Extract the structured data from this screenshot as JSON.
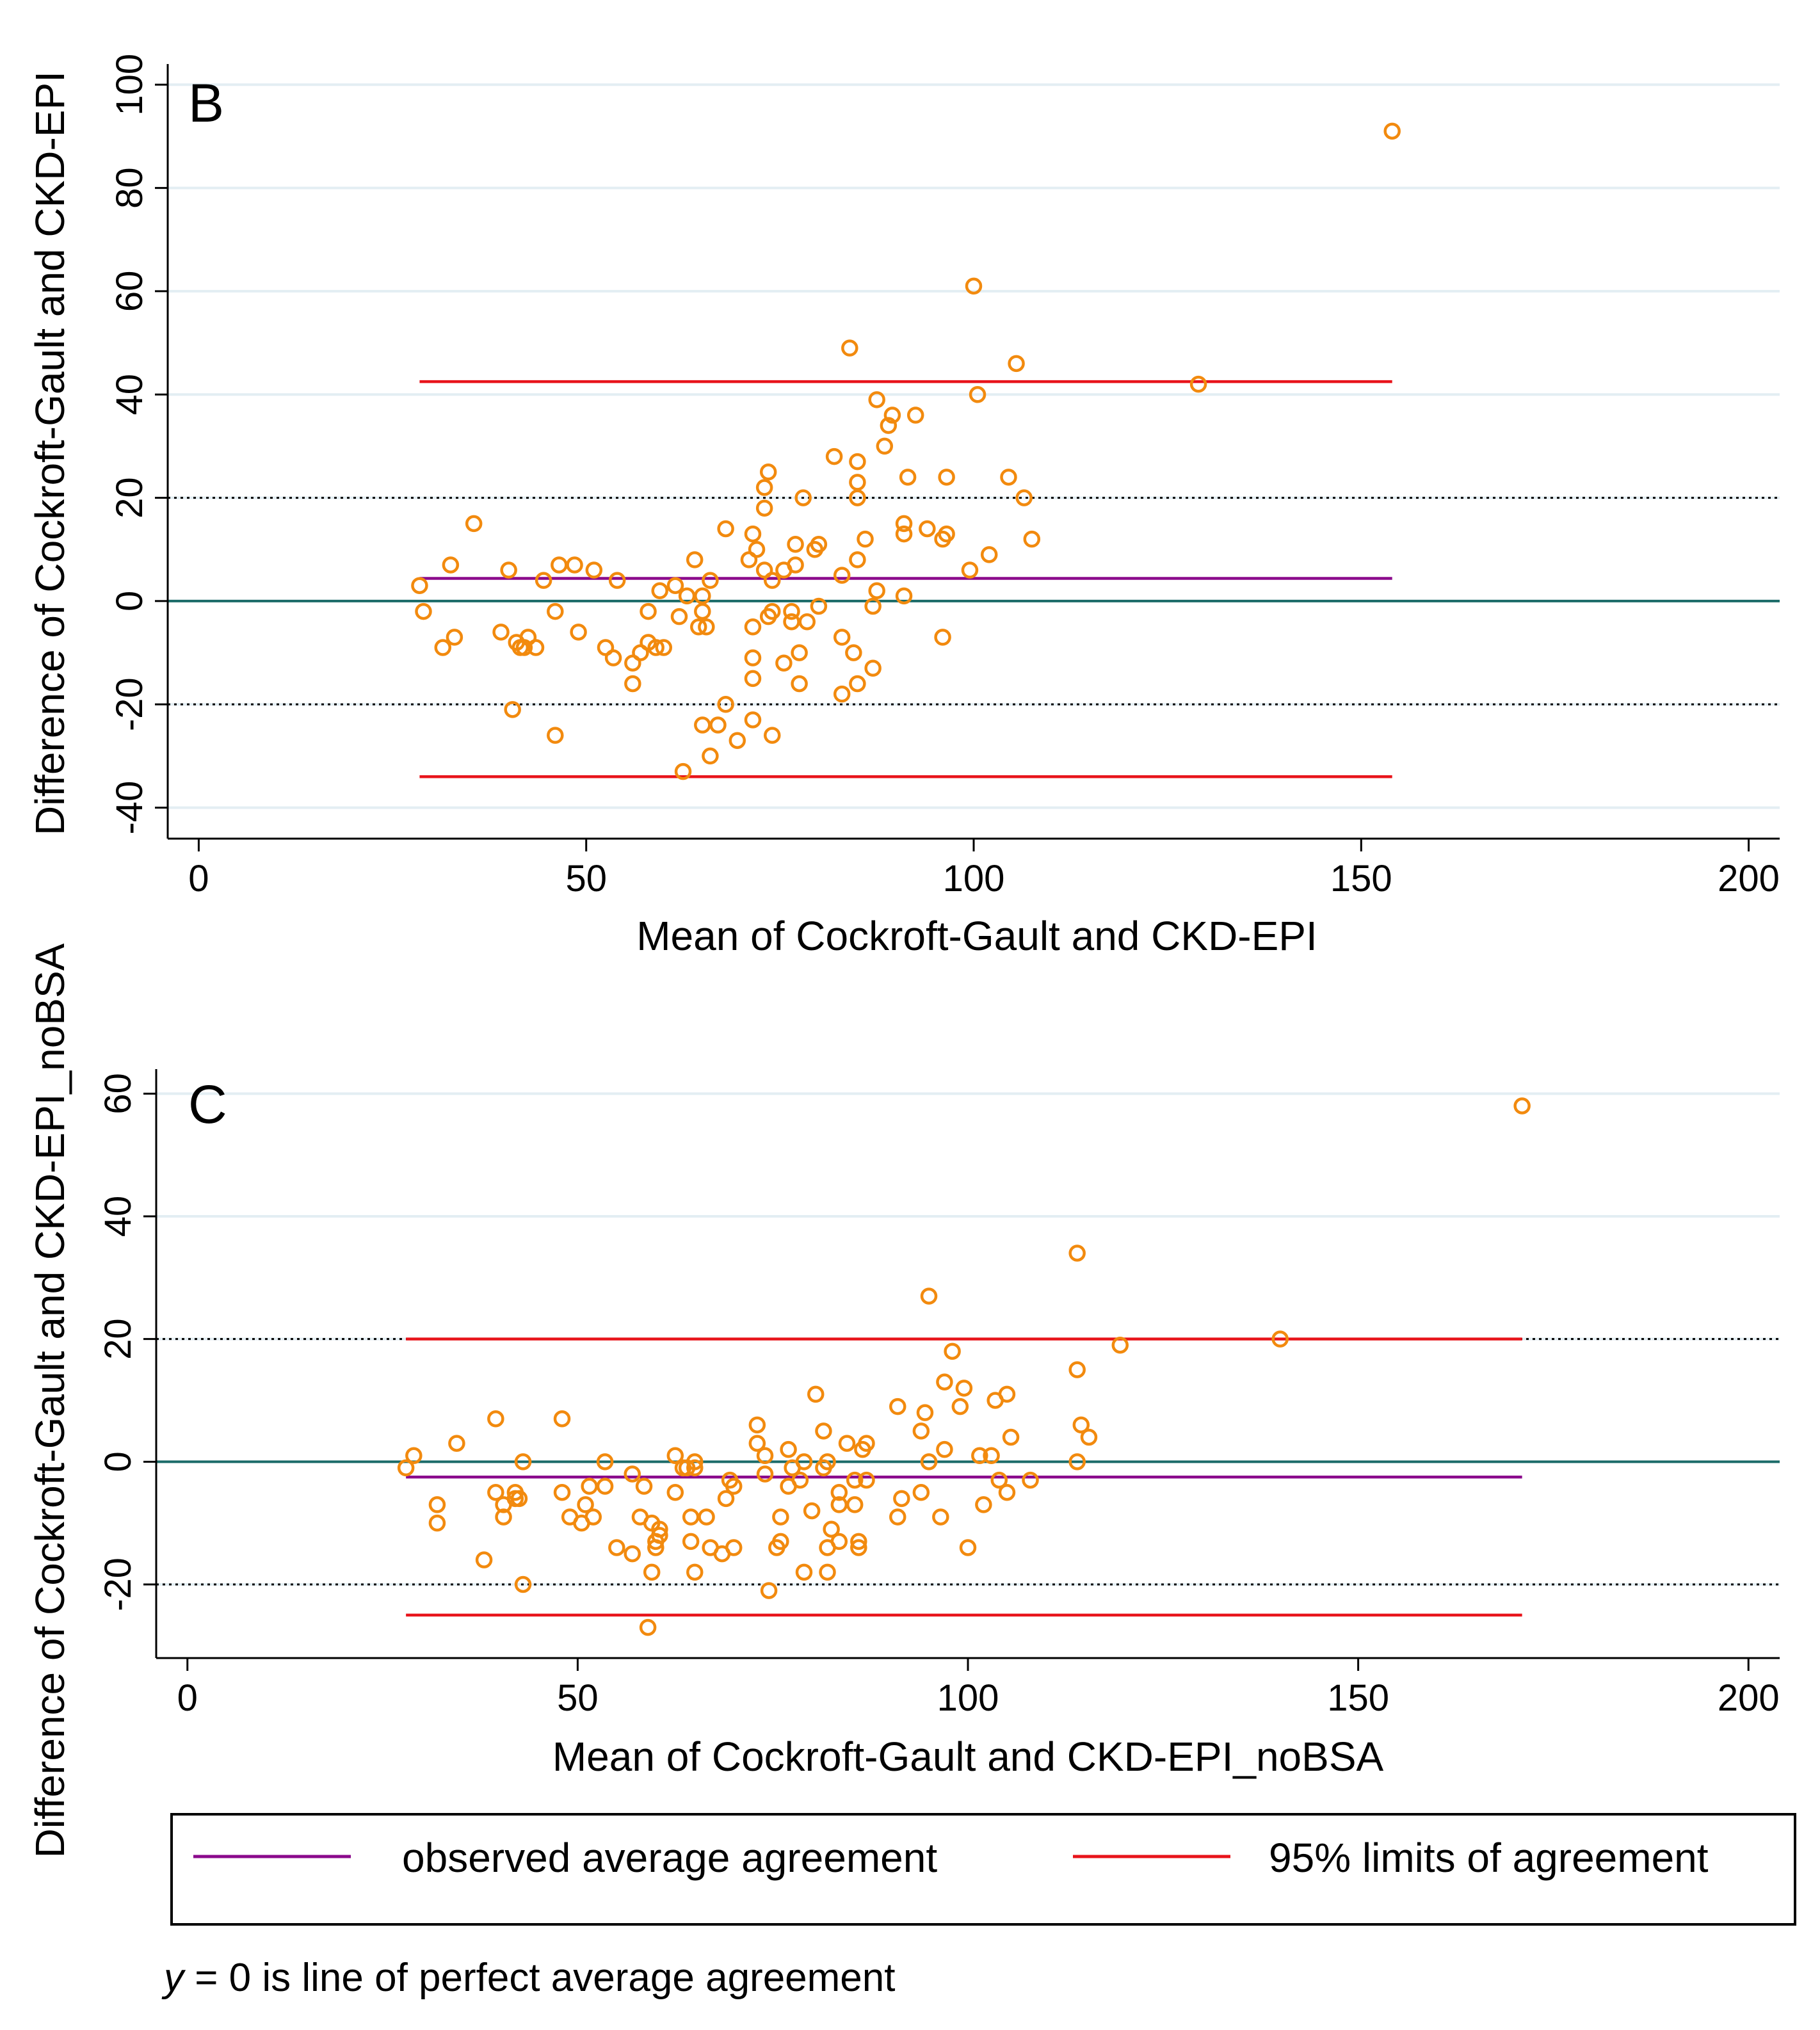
{
  "note": "y = 0 is line of perfect average agreement",
  "legend": {
    "items": [
      {
        "label": "observed average agreement",
        "color": "#8B0A8C"
      },
      {
        "label": "95% limits of agreement",
        "color": "#E8141B"
      }
    ]
  },
  "colors": {
    "points": "#F28A0E",
    "zero_line": "#1B6B68",
    "mean_line": "#8B0A8C",
    "loa_line": "#E8141B",
    "grid": "#E3EEF3"
  },
  "chart_data": [
    {
      "type": "scatter",
      "panel_label": "B",
      "xlabel": "Mean of Cockroft-Gault and CKD-EPI",
      "ylabel": "Difference of Cockroft-Gault and CKD-EPI",
      "xlim": [
        -4,
        204
      ],
      "ylim": [
        -46,
        104
      ],
      "xticks": [
        0,
        50,
        100,
        150,
        200
      ],
      "yticks": [
        -40,
        -20,
        0,
        20,
        40,
        60,
        80,
        100
      ],
      "mean_difference": 4.4,
      "limits_of_agreement": [
        -34,
        42.5
      ],
      "reference_dotted": [
        -20,
        20
      ],
      "line_x_range": [
        28.5,
        154
      ],
      "points": [
        [
          28.5,
          3
        ],
        [
          29,
          -2
        ],
        [
          31.5,
          -9
        ],
        [
          32.5,
          7
        ],
        [
          33,
          -7
        ],
        [
          35.5,
          15
        ],
        [
          39,
          -6
        ],
        [
          40,
          6
        ],
        [
          40.5,
          -21
        ],
        [
          41,
          -8
        ],
        [
          41.5,
          -9
        ],
        [
          42,
          -9
        ],
        [
          42.5,
          -7
        ],
        [
          43.5,
          -9
        ],
        [
          44.5,
          4
        ],
        [
          46,
          -2
        ],
        [
          46,
          -26
        ],
        [
          46.5,
          7
        ],
        [
          48.5,
          7
        ],
        [
          49,
          -6
        ],
        [
          51,
          6
        ],
        [
          52.5,
          -9
        ],
        [
          53.5,
          -11
        ],
        [
          54,
          4
        ],
        [
          56,
          -12
        ],
        [
          56,
          -16
        ],
        [
          57,
          -10
        ],
        [
          58,
          -2
        ],
        [
          58,
          -8
        ],
        [
          59,
          -9
        ],
        [
          59.5,
          2
        ],
        [
          60,
          -9
        ],
        [
          61.5,
          3
        ],
        [
          62,
          -3
        ],
        [
          62.5,
          -33
        ],
        [
          63,
          1
        ],
        [
          64,
          8
        ],
        [
          64.5,
          -5
        ],
        [
          65,
          1
        ],
        [
          65,
          -2
        ],
        [
          65,
          -24
        ],
        [
          65.5,
          -5
        ],
        [
          66,
          -30
        ],
        [
          66,
          4
        ],
        [
          67,
          -24
        ],
        [
          68,
          14
        ],
        [
          68,
          -20
        ],
        [
          69.5,
          -27
        ],
        [
          71,
          8
        ],
        [
          71.5,
          13
        ],
        [
          71.5,
          -5
        ],
        [
          71.5,
          -11
        ],
        [
          71.5,
          -15
        ],
        [
          71.5,
          -23
        ],
        [
          72,
          10
        ],
        [
          73,
          6
        ],
        [
          73,
          22
        ],
        [
          73,
          18
        ],
        [
          73.5,
          25
        ],
        [
          73.5,
          -3
        ],
        [
          74,
          4
        ],
        [
          74,
          -2
        ],
        [
          74,
          -26
        ],
        [
          75.5,
          6
        ],
        [
          75.5,
          -12
        ],
        [
          76.5,
          -2
        ],
        [
          76.5,
          -4
        ],
        [
          77,
          11
        ],
        [
          77,
          7
        ],
        [
          77.5,
          -10
        ],
        [
          77.5,
          -16
        ],
        [
          78,
          20
        ],
        [
          78.5,
          -4
        ],
        [
          79.5,
          10
        ],
        [
          80,
          11
        ],
        [
          80,
          -1
        ],
        [
          82,
          28
        ],
        [
          83,
          -7
        ],
        [
          83,
          -18
        ],
        [
          83,
          5
        ],
        [
          84,
          49
        ],
        [
          84.5,
          -10
        ],
        [
          85,
          8
        ],
        [
          85,
          -16
        ],
        [
          85,
          20
        ],
        [
          85,
          27
        ],
        [
          85,
          23
        ],
        [
          86,
          12
        ],
        [
          87,
          -1
        ],
        [
          87,
          -13
        ],
        [
          87.5,
          2
        ],
        [
          87.5,
          39
        ],
        [
          88.5,
          30
        ],
        [
          89,
          34
        ],
        [
          89.5,
          36
        ],
        [
          91,
          13
        ],
        [
          91,
          15
        ],
        [
          91,
          1
        ],
        [
          91.5,
          24
        ],
        [
          92.5,
          36
        ],
        [
          94,
          14
        ],
        [
          96,
          -7
        ],
        [
          96,
          12
        ],
        [
          96.5,
          24
        ],
        [
          96.5,
          13
        ],
        [
          99.5,
          6
        ],
        [
          100,
          61
        ],
        [
          100.5,
          40
        ],
        [
          102,
          9
        ],
        [
          104.5,
          24
        ],
        [
          105.5,
          46
        ],
        [
          106.5,
          20
        ],
        [
          107.5,
          12
        ],
        [
          129,
          42
        ],
        [
          154,
          91
        ]
      ]
    },
    {
      "type": "scatter",
      "panel_label": "C",
      "xlabel": "Mean of Cockroft-Gault and CKD-EPI_noBSA",
      "ylabel": "Difference of Cockroft-Gault and CKD-EPI_noBSA",
      "xlim": [
        -4,
        204
      ],
      "ylim": [
        -32,
        64
      ],
      "xticks": [
        0,
        50,
        100,
        150,
        200
      ],
      "yticks": [
        -20,
        0,
        20,
        40,
        60
      ],
      "mean_difference": -2.5,
      "limits_of_agreement": [
        -25,
        20
      ],
      "reference_dotted": [
        -20,
        20
      ],
      "line_x_range": [
        28,
        171
      ],
      "points": [
        [
          28,
          -1
        ],
        [
          29,
          1
        ],
        [
          32,
          -7
        ],
        [
          32,
          -10
        ],
        [
          34.5,
          3
        ],
        [
          38,
          -16
        ],
        [
          39.5,
          7
        ],
        [
          39.5,
          -5
        ],
        [
          40.5,
          -9
        ],
        [
          40.5,
          -7
        ],
        [
          42,
          -5
        ],
        [
          42,
          -6
        ],
        [
          42.5,
          -6
        ],
        [
          43,
          -20
        ],
        [
          43,
          0
        ],
        [
          48,
          7
        ],
        [
          48,
          -5
        ],
        [
          49,
          -9
        ],
        [
          50.5,
          -10
        ],
        [
          51,
          -7
        ],
        [
          51.5,
          -4
        ],
        [
          52,
          -9
        ],
        [
          53.5,
          0
        ],
        [
          53.5,
          -4
        ],
        [
          55,
          -14
        ],
        [
          57,
          -2
        ],
        [
          57,
          -15
        ],
        [
          58,
          -9
        ],
        [
          58.5,
          -4
        ],
        [
          59,
          -27
        ],
        [
          59.5,
          -18
        ],
        [
          59.5,
          -10
        ],
        [
          60,
          -13
        ],
        [
          60,
          -14
        ],
        [
          60.5,
          -11
        ],
        [
          60.5,
          -12
        ],
        [
          62.5,
          1
        ],
        [
          62.5,
          -5
        ],
        [
          63.5,
          -1
        ],
        [
          64,
          -1
        ],
        [
          64.5,
          -9
        ],
        [
          64.5,
          -13
        ],
        [
          65,
          0
        ],
        [
          65,
          -18
        ],
        [
          65,
          -1
        ],
        [
          66.5,
          -9
        ],
        [
          67,
          -14
        ],
        [
          68.5,
          -15
        ],
        [
          69,
          -6
        ],
        [
          69.5,
          -3
        ],
        [
          70,
          -14
        ],
        [
          70,
          -4
        ],
        [
          73,
          6
        ],
        [
          73,
          3
        ],
        [
          74,
          -2
        ],
        [
          74,
          1
        ],
        [
          74.5,
          -21
        ],
        [
          75.5,
          -14
        ],
        [
          76,
          -13
        ],
        [
          76,
          -9
        ],
        [
          77,
          -4
        ],
        [
          77,
          2
        ],
        [
          77.5,
          -1
        ],
        [
          78.5,
          -3
        ],
        [
          79,
          0
        ],
        [
          79,
          -18
        ],
        [
          80,
          -8
        ],
        [
          80.5,
          11
        ],
        [
          81.5,
          -1
        ],
        [
          81.5,
          5
        ],
        [
          82,
          0
        ],
        [
          82,
          -14
        ],
        [
          82,
          -18
        ],
        [
          82.5,
          -11
        ],
        [
          83.5,
          -7
        ],
        [
          83.5,
          -13
        ],
        [
          83.5,
          -5
        ],
        [
          84.5,
          3
        ],
        [
          85.5,
          -7
        ],
        [
          85.5,
          -3
        ],
        [
          86,
          -13
        ],
        [
          86,
          -14
        ],
        [
          86.5,
          2
        ],
        [
          87,
          -3
        ],
        [
          87,
          3
        ],
        [
          91,
          9
        ],
        [
          91,
          -9
        ],
        [
          91.5,
          -6
        ],
        [
          94,
          5
        ],
        [
          94,
          -5
        ],
        [
          94.5,
          8
        ],
        [
          95,
          0
        ],
        [
          95,
          27
        ],
        [
          96.5,
          -9
        ],
        [
          97,
          2
        ],
        [
          97,
          13
        ],
        [
          98,
          18
        ],
        [
          99,
          9
        ],
        [
          99.5,
          12
        ],
        [
          100,
          -14
        ],
        [
          101.5,
          1
        ],
        [
          102,
          -7
        ],
        [
          103,
          1
        ],
        [
          103.5,
          10
        ],
        [
          104,
          -3
        ],
        [
          105,
          -5
        ],
        [
          105,
          11
        ],
        [
          105.5,
          4
        ],
        [
          108,
          -3
        ],
        [
          114,
          34
        ],
        [
          114,
          15
        ],
        [
          114,
          0
        ],
        [
          114.5,
          6
        ],
        [
          115.5,
          4
        ],
        [
          119.5,
          19
        ],
        [
          140,
          20
        ],
        [
          171,
          58
        ]
      ]
    }
  ]
}
